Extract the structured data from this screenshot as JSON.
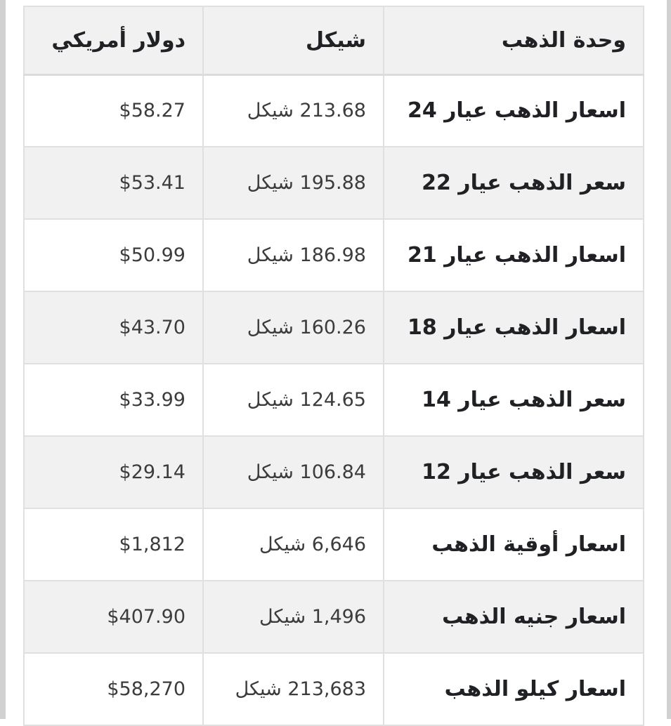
{
  "page": {
    "background_color": "#ffffff",
    "edge_strip_color": "#d1d1d1",
    "stripe_color": "#f1f1f1",
    "border_color": "#e0e0e0",
    "heading_text_color": "#202124",
    "value_text_color": "#3c3c3c"
  },
  "table": {
    "columns": [
      {
        "key": "unit",
        "label": "وحدة الذهب"
      },
      {
        "key": "shekel",
        "label": "شيكل"
      },
      {
        "key": "dollar",
        "label": "دولار أمريكي"
      }
    ],
    "rows": [
      {
        "unit": "اسعار الذهب عيار 24",
        "shekel": "213.68 شيكل",
        "dollar": "$58.27"
      },
      {
        "unit": "سعر الذهب عيار 22",
        "shekel": "195.88 شيكل",
        "dollar": "$53.41"
      },
      {
        "unit": "اسعار الذهب عيار 21",
        "shekel": "186.98 شيكل",
        "dollar": "$50.99"
      },
      {
        "unit": "اسعار الذهب عيار 18",
        "shekel": "160.26 شيكل",
        "dollar": "$43.70"
      },
      {
        "unit": "سعر الذهب عيار 14",
        "shekel": "124.65 شيكل",
        "dollar": "$33.99"
      },
      {
        "unit": "سعر الذهب عيار 12",
        "shekel": "106.84 شيكل",
        "dollar": "$29.14"
      },
      {
        "unit": "اسعار أوقية الذهب",
        "shekel": "6,646 شيكل",
        "dollar": "$1,812"
      },
      {
        "unit": "اسعار جنيه الذهب",
        "shekel": "1,496 شيكل",
        "dollar": "$407.90"
      },
      {
        "unit": "اسعار كيلو الذهب",
        "shekel": "213,683 شيكل",
        "dollar": "$58,270"
      }
    ]
  }
}
